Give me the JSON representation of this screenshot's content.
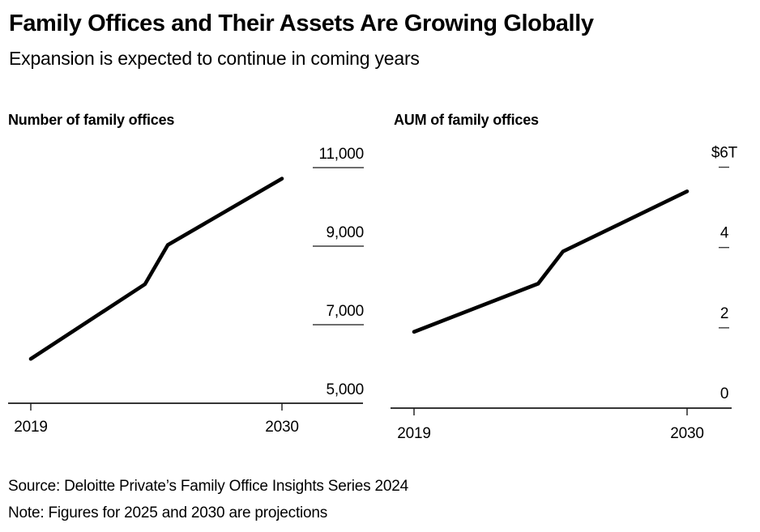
{
  "header": {
    "title": "Family Offices and Their Assets Are Growing Globally",
    "subtitle": "Expansion is expected to continue in coming years"
  },
  "chart_data": [
    {
      "type": "line",
      "title": "Number of family offices",
      "x": [
        2019,
        2024,
        2025,
        2030
      ],
      "series": [
        {
          "name": "Number of family offices",
          "values": [
            6130,
            8030,
            9030,
            10720
          ]
        }
      ],
      "xlim": [
        2019,
        2030
      ],
      "ylim": [
        5000,
        11000
      ],
      "x_ticks": [
        {
          "label": "2019",
          "value": 2019
        },
        {
          "label": "2030",
          "value": 2030
        }
      ],
      "y_ticks": [
        {
          "label": "11,000",
          "value": 11000
        },
        {
          "label": "9,000",
          "value": 9000
        },
        {
          "label": "7,000",
          "value": 7000
        },
        {
          "label": "5,000",
          "value": 5000
        }
      ],
      "legend": "none",
      "grid": "short tick rules on right side",
      "line_color": "#000000"
    },
    {
      "type": "line",
      "title": "AUM of family offices",
      "x": [
        2019,
        2024,
        2025,
        2030
      ],
      "series": [
        {
          "name": "AUM of family offices (trillion USD)",
          "values": [
            1.9,
            3.1,
            3.9,
            5.4
          ]
        }
      ],
      "xlim": [
        2019,
        2030
      ],
      "ylim": [
        0,
        6
      ],
      "x_ticks": [
        {
          "label": "2019",
          "value": 2019
        },
        {
          "label": "2030",
          "value": 2030
        }
      ],
      "y_ticks": [
        {
          "label": "$6T",
          "value": 6
        },
        {
          "label": "4",
          "value": 4
        },
        {
          "label": "2",
          "value": 2
        },
        {
          "label": "0",
          "value": 0
        }
      ],
      "legend": "none",
      "grid": "short tick dashes on right side",
      "line_color": "#000000"
    }
  ],
  "footer": {
    "source": "Source: Deloitte Private’s Family Office Insights Series 2024",
    "note": "Note: Figures for 2025 and 2030 are projections"
  },
  "colors": {
    "background": "#ffffff",
    "text": "#000000",
    "axis": "#1a1a1a",
    "tick_rule": "#3d3d3d"
  }
}
